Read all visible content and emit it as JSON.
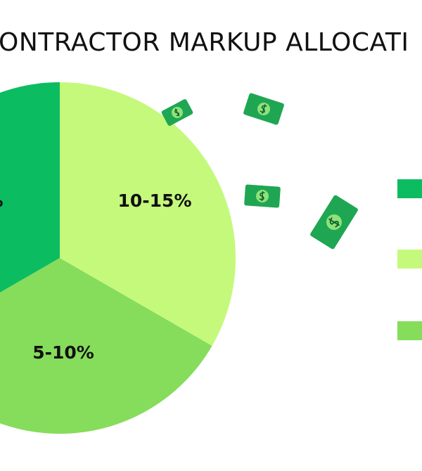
{
  "header": {
    "title": "ONTRACTOR MARKUP ALLOCATI"
  },
  "pie": {
    "slices": [
      {
        "label": "%",
        "color": "#0cbc61"
      },
      {
        "label": "10-15%",
        "color": "#c5f97c"
      },
      {
        "label": "5-10%",
        "color": "#86dc5b"
      }
    ]
  }
}
